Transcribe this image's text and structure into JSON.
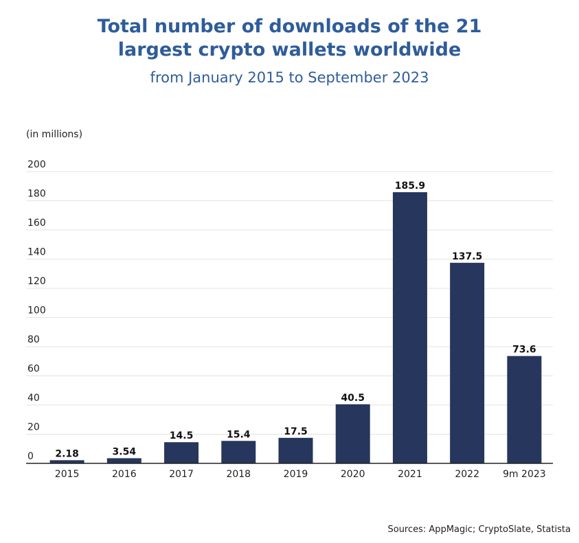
{
  "title": "Total number of downloads of the 21 largest crypto wallets worldwide",
  "subtitle": "from January 2015 to September 2023",
  "unit_label": "(in millions)",
  "source": "Sources: AppMagic; CryptoSlate, Statista",
  "colors": {
    "bar": "#26365c",
    "title": "#2f5c9a",
    "grid": "#e3e3e3",
    "axis": "#222222"
  },
  "chart_data": {
    "type": "bar",
    "categories": [
      "2015",
      "2016",
      "2017",
      "2018",
      "2019",
      "2020",
      "2021",
      "2022",
      "9m 2023"
    ],
    "values": [
      2.18,
      3.54,
      14.5,
      15.4,
      17.5,
      40.5,
      185.9,
      137.5,
      73.6
    ],
    "data_labels": [
      "2.18",
      "3.54",
      "14.5",
      "15.4",
      "17.5",
      "40.5",
      "185.9",
      "137.5",
      "73.6"
    ],
    "ylabel": "(in millions)",
    "ylim": [
      0,
      200
    ],
    "yticks": [
      0,
      20,
      40,
      60,
      80,
      100,
      120,
      140,
      160,
      180,
      200
    ],
    "grid": true,
    "legend": "none"
  }
}
